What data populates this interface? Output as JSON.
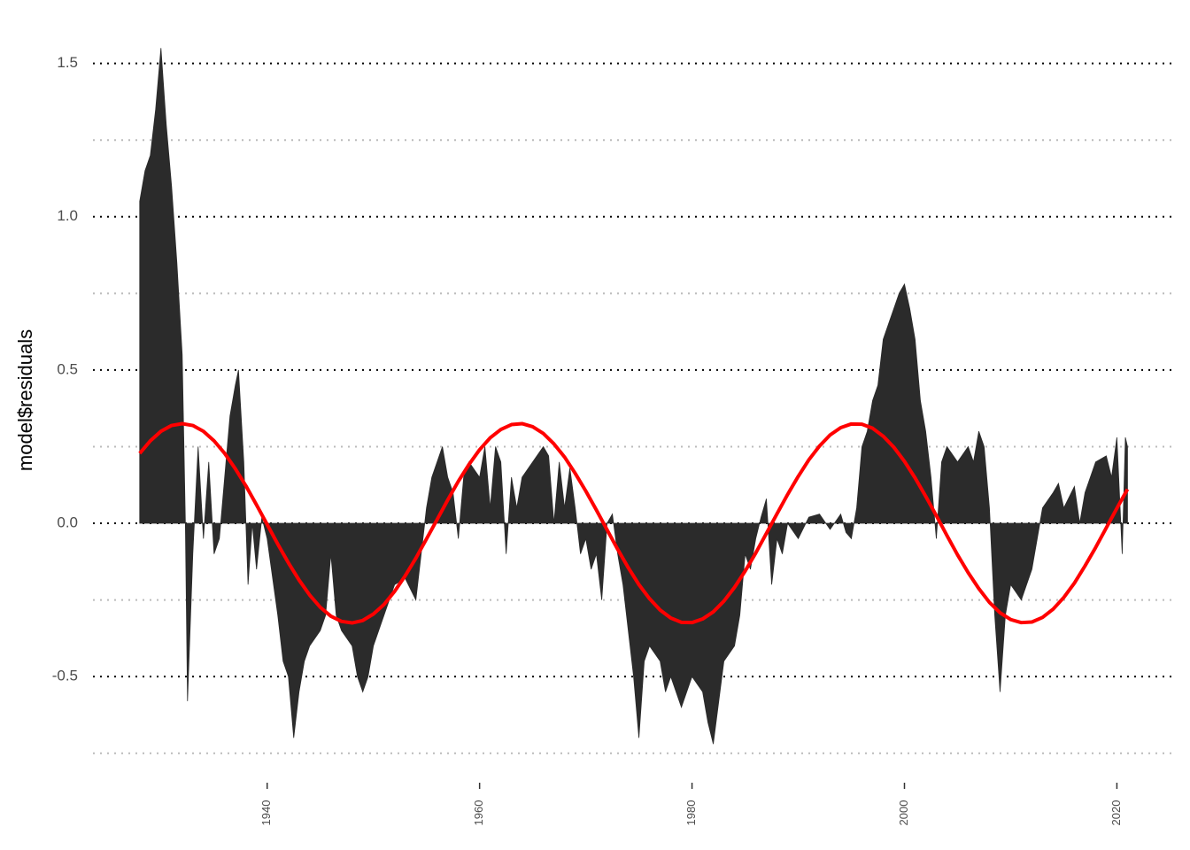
{
  "chart_data": {
    "type": "area_line",
    "ylabel": "model$residuals",
    "xlim": [
      1923.6,
      2025.3
    ],
    "xticks": [
      1940,
      1960,
      1980,
      2000,
      2020
    ],
    "ylim": [
      -0.8,
      1.6
    ],
    "yticks": [
      -0.5,
      {
        "value": 0,
        "label": "0.0"
      },
      0.5,
      {
        "value": 1,
        "label": "1.0"
      },
      1.5
    ],
    "yminorticks": [
      -0.75,
      -0.25,
      0.25,
      0.75,
      1.25
    ],
    "grid": true,
    "series": [
      {
        "kind": "area",
        "color": "#2b2b2b",
        "x": [
          1928,
          1928.5,
          1929,
          1929.5,
          1930,
          1930.5,
          1931,
          1931.5,
          1932,
          1932.3,
          1932.5,
          1933,
          1933.5,
          1934,
          1934.5,
          1935,
          1935.5,
          1936,
          1936.5,
          1937,
          1937.3,
          1937.8,
          1938.2,
          1938.6,
          1939,
          1939.5,
          1940,
          1941,
          1941.5,
          1942,
          1942.5,
          1943,
          1943.5,
          1944,
          1945,
          1945.5,
          1946,
          1946.5,
          1947,
          1948,
          1948.5,
          1949,
          1949.5,
          1950,
          1951,
          1952,
          1953,
          1954,
          1954.5,
          1955,
          1955.5,
          1956,
          1956.5,
          1957,
          1957.5,
          1958,
          1958.5,
          1959,
          1960,
          1960.5,
          1961,
          1961.5,
          1962,
          1962.5,
          1963,
          1963.5,
          1964,
          1965,
          1966,
          1966.5,
          1967,
          1967.5,
          1968,
          1968.5,
          1969,
          1969.5,
          1970,
          1970.5,
          1971,
          1971.5,
          1972,
          1972.5,
          1973,
          1973.5,
          1974,
          1974.5,
          1975,
          1975.5,
          1976,
          1977,
          1977.5,
          1978,
          1979,
          1980,
          1981,
          1981.5,
          1982,
          1983,
          1984,
          1984.5,
          1985,
          1985.5,
          1986,
          1986.5,
          1987,
          1987.5,
          1988,
          1988.5,
          1989,
          1990,
          1991,
          1992,
          1993,
          1994,
          1994.5,
          1995,
          1995.5,
          1996,
          1996.5,
          1997,
          1997.5,
          1998,
          1998.5,
          1999,
          1999.5,
          2000,
          2000.5,
          2001,
          2001.5,
          2002,
          2002.5,
          2003,
          2003.5,
          2004,
          2005,
          2006,
          2006.5,
          2007,
          2007.5,
          2008,
          2008.5,
          2009,
          2009.5,
          2010,
          2011,
          2012,
          2012.5,
          2013,
          2014,
          2014.5,
          2015,
          2016,
          2016.5,
          2017,
          2018,
          2019,
          2019.5,
          2020,
          2020.5,
          2020.8,
          2021
        ],
        "values": [
          1.05,
          1.15,
          1.2,
          1.35,
          1.55,
          1.3,
          1.1,
          0.85,
          0.55,
          0,
          -0.58,
          -0.1,
          0.25,
          -0.05,
          0.2,
          -0.1,
          -0.05,
          0.15,
          0.35,
          0.45,
          0.5,
          0.2,
          -0.2,
          0,
          -0.15,
          0.02,
          -0.05,
          -0.3,
          -0.45,
          -0.5,
          -0.7,
          -0.55,
          -0.45,
          -0.4,
          -0.35,
          -0.3,
          -0.1,
          -0.3,
          -0.35,
          -0.4,
          -0.5,
          -0.55,
          -0.5,
          -0.4,
          -0.3,
          -0.2,
          -0.18,
          -0.25,
          -0.1,
          0.05,
          0.15,
          0.2,
          0.25,
          0.15,
          0.1,
          -0.05,
          0.15,
          0.2,
          0.15,
          0.25,
          0.05,
          0.25,
          0.2,
          -0.1,
          0.15,
          0.05,
          0.15,
          0.2,
          0.25,
          0.22,
          0,
          0.2,
          0.05,
          0.18,
          0.05,
          -0.1,
          -0.05,
          -0.15,
          -0.1,
          -0.25,
          0,
          0.03,
          -0.1,
          -0.2,
          -0.35,
          -0.5,
          -0.7,
          -0.45,
          -0.4,
          -0.45,
          -0.55,
          -0.5,
          -0.6,
          -0.5,
          -0.55,
          -0.65,
          -0.72,
          -0.45,
          -0.4,
          -0.3,
          -0.1,
          -0.15,
          -0.05,
          0.02,
          0.08,
          -0.2,
          -0.05,
          -0.1,
          0,
          -0.05,
          0.02,
          0.03,
          -0.02,
          0.03,
          -0.03,
          -0.05,
          0.05,
          0.25,
          0.3,
          0.4,
          0.45,
          0.6,
          0.65,
          0.7,
          0.75,
          0.78,
          0.7,
          0.6,
          0.4,
          0.3,
          0.15,
          -0.05,
          0.2,
          0.25,
          0.2,
          0.25,
          0.2,
          0.3,
          0.25,
          0.05,
          -0.3,
          -0.55,
          -0.3,
          -0.2,
          -0.25,
          -0.15,
          -0.05,
          0.05,
          0.1,
          0.13,
          0.05,
          0.12,
          0,
          0.1,
          0.2,
          0.22,
          0.15,
          0.28,
          -0.1,
          0.28,
          0.25
        ]
      },
      {
        "kind": "line",
        "color": "#ff0000",
        "x": [
          1928,
          1929,
          1930,
          1931,
          1932,
          1933,
          1934,
          1935,
          1936,
          1937,
          1938,
          1939,
          1940,
          1941,
          1942,
          1943,
          1944,
          1945,
          1946,
          1947,
          1948,
          1949,
          1950,
          1951,
          1952,
          1953,
          1954,
          1955,
          1956,
          1957,
          1958,
          1959,
          1960,
          1961,
          1962,
          1963,
          1964,
          1965,
          1966,
          1967,
          1968,
          1969,
          1970,
          1971,
          1972,
          1973,
          1974,
          1975,
          1976,
          1977,
          1978,
          1979,
          1980,
          1981,
          1982,
          1983,
          1984,
          1985,
          1986,
          1987,
          1988,
          1989,
          1990,
          1991,
          1992,
          1993,
          1994,
          1995,
          1996,
          1997,
          1998,
          1999,
          2000,
          2001,
          2002,
          2003,
          2004,
          2005,
          2006,
          2007,
          2008,
          2009,
          2010,
          2011,
          2012,
          2013,
          2014,
          2015,
          2016,
          2017,
          2018,
          2019,
          2020,
          2021
        ],
        "values": [
          0.228,
          0.269,
          0.3,
          0.319,
          0.325,
          0.319,
          0.3,
          0.269,
          0.228,
          0.178,
          0.122,
          0.06,
          -0.004,
          -0.068,
          -0.129,
          -0.185,
          -0.234,
          -0.274,
          -0.303,
          -0.32,
          -0.325,
          -0.317,
          -0.296,
          -0.265,
          -0.222,
          -0.171,
          -0.114,
          -0.051,
          0.012,
          0.076,
          0.137,
          0.192,
          0.24,
          0.279,
          0.306,
          0.322,
          0.325,
          0.315,
          0.293,
          0.259,
          0.216,
          0.163,
          0.105,
          0.043,
          -0.021,
          -0.085,
          -0.145,
          -0.2,
          -0.246,
          -0.283,
          -0.309,
          -0.323,
          -0.324,
          -0.312,
          -0.289,
          -0.254,
          -0.209,
          -0.156,
          -0.097,
          -0.033,
          0.031,
          0.094,
          0.153,
          0.207,
          0.252,
          0.288,
          0.312,
          0.324,
          0.323,
          0.31,
          0.284,
          0.248,
          0.202,
          0.148,
          0.088,
          0.025,
          -0.04,
          -0.103,
          -0.161,
          -0.213,
          -0.258,
          -0.292,
          -0.314,
          -0.324,
          -0.322,
          -0.307,
          -0.28,
          -0.242,
          -0.195,
          -0.139,
          -0.079,
          -0.015,
          0.049,
          0.111
        ]
      }
    ]
  }
}
